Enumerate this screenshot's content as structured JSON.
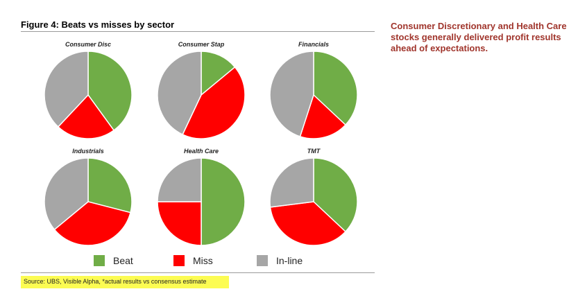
{
  "figure_title": "Figure 4: Beats vs misses by sector",
  "commentary": "Consumer Discretionary and Health Care stocks generally delivered profit results ahead of expectations.",
  "source": "Source: UBS, Visible Alpha, *actual results vs consensus estimate",
  "colors": {
    "beat": "#70ad47",
    "miss": "#ff0000",
    "inline": "#a6a6a6",
    "commentary": "#a0352c",
    "highlight": "#fcfc52"
  },
  "chart_data": {
    "type": "pie",
    "title": "Figure 4: Beats vs misses by sector",
    "series_names": [
      "Beat",
      "Miss",
      "In-line"
    ],
    "legend_position": "bottom",
    "charts": [
      {
        "title": "Consumer Disc",
        "values": [
          40,
          22,
          38
        ]
      },
      {
        "title": "Consumer Stap",
        "values": [
          14,
          43,
          43
        ]
      },
      {
        "title": "Financials",
        "values": [
          37,
          18,
          45
        ]
      },
      {
        "title": "Industrials",
        "values": [
          29,
          35,
          36
        ]
      },
      {
        "title": "Health Care",
        "values": [
          50,
          25,
          25
        ]
      },
      {
        "title": "TMT",
        "values": [
          37,
          36,
          27
        ]
      }
    ]
  }
}
